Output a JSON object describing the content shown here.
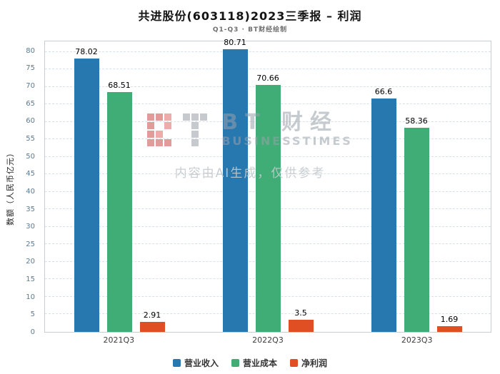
{
  "chart_data": {
    "type": "bar",
    "title": "共进股份(603118)2023三季报 – 利润",
    "subtitle": "Q1-Q3 · BT财经绘制",
    "categories": [
      "2021Q3",
      "2022Q3",
      "2023Q3"
    ],
    "series": [
      {
        "name": "营业收入",
        "color": "#2878b0",
        "values": [
          78.02,
          80.71,
          66.6
        ]
      },
      {
        "name": "营业成本",
        "color": "#41ad76",
        "values": [
          68.51,
          70.66,
          58.36
        ]
      },
      {
        "name": "净利润",
        "color": "#e04f24",
        "values": [
          2.91,
          3.5,
          1.69
        ]
      }
    ],
    "xlabel": "",
    "ylabel": "数额（人民币亿元）",
    "ylim": [
      0,
      83
    ],
    "yticks": [
      0,
      5,
      10,
      15,
      20,
      25,
      30,
      35,
      40,
      45,
      50,
      55,
      60,
      65,
      70,
      75,
      80
    ],
    "grid": true,
    "legend_position": "bottom"
  },
  "watermark": {
    "brand_cn": "BT 财经",
    "brand_en": "BUSINESSTIMES",
    "disclaimer": "内容由AI生成，仅供参考"
  }
}
